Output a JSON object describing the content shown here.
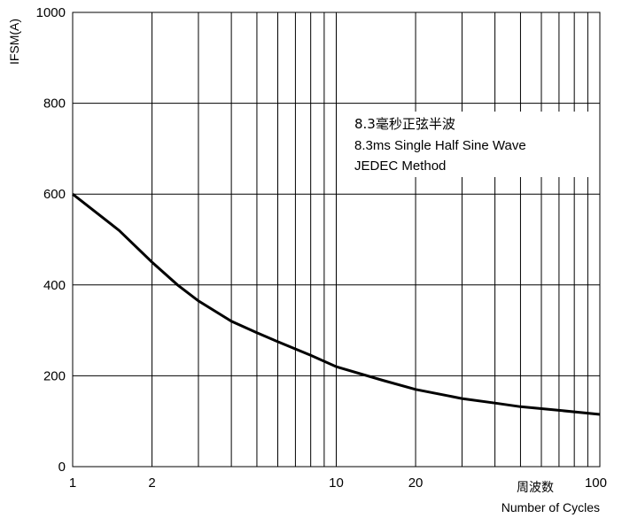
{
  "chart_data": {
    "type": "line",
    "xscale": "log",
    "xlim": [
      1,
      100
    ],
    "ylim": [
      0,
      1000
    ],
    "grid": true,
    "ylabel": "IFSM(A)",
    "xlabel": "Number of Cycles",
    "xlabel_cn": "周波数",
    "x_ticks": [
      1,
      2,
      10,
      20,
      100
    ],
    "y_ticks": [
      0,
      200,
      400,
      600,
      800,
      1000
    ],
    "x_tick_labels": [
      "1",
      "2",
      "10",
      "20",
      "100"
    ],
    "y_tick_labels": [
      "0",
      "200",
      "400",
      "600",
      "800",
      "1000"
    ],
    "annotation": [
      "8.3毫秒正弦半波",
      "8.3ms Single Half Sine Wave",
      "JEDEC Method"
    ],
    "series": [
      {
        "x": [
          1,
          1.5,
          2,
          2.5,
          3,
          4,
          5,
          6,
          8,
          10,
          15,
          20,
          30,
          40,
          50,
          70,
          100
        ],
        "values": [
          600,
          520,
          450,
          400,
          365,
          320,
          295,
          275,
          245,
          220,
          190,
          170,
          150,
          140,
          132,
          124,
          115
        ]
      }
    ],
    "line_color": "#000000"
  }
}
